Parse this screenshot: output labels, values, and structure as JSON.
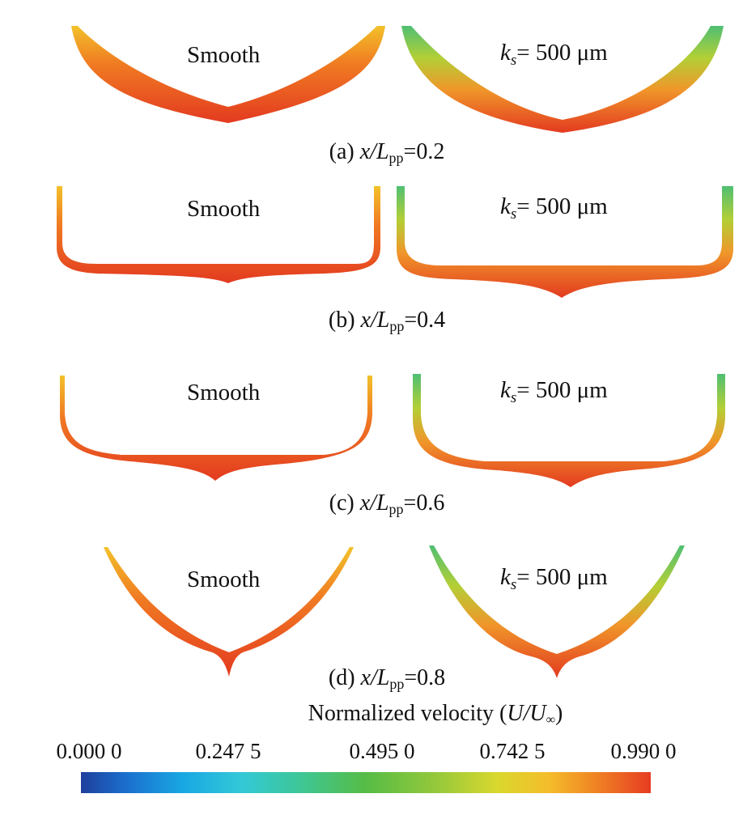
{
  "panels": [
    {
      "left_label": "Smooth",
      "right_label_prefix": "k",
      "right_label_sub": "s",
      "right_label_value": "= 500 μm",
      "caption_prefix": "(a) ",
      "caption_var": "x/L",
      "caption_sub": "pp",
      "caption_value": "=0.2"
    },
    {
      "left_label": "Smooth",
      "right_label_prefix": "k",
      "right_label_sub": "s",
      "right_label_value": "= 500 μm",
      "caption_prefix": "(b) ",
      "caption_var": "x/L",
      "caption_sub": "pp",
      "caption_value": "=0.4"
    },
    {
      "left_label": "Smooth",
      "right_label_prefix": "k",
      "right_label_sub": "s",
      "right_label_value": "= 500 μm",
      "caption_prefix": "(c) ",
      "caption_var": "x/L",
      "caption_sub": "pp",
      "caption_value": "=0.6"
    },
    {
      "left_label": "Smooth",
      "right_label_prefix": "k",
      "right_label_sub": "s",
      "right_label_value": "= 500 μm",
      "caption_prefix": "(d) ",
      "caption_var": "x/L",
      "caption_sub": "pp",
      "caption_value": "=0.8"
    }
  ],
  "colorbar": {
    "title_prefix": "Normalized velocity (",
    "title_var": "U/U",
    "title_sub": "∞",
    "title_suffix": ")",
    "ticks": [
      "0.000 0",
      "0.247 5",
      "0.495 0",
      "0.742 5",
      "0.990 0"
    ],
    "colors": [
      "#1f3f9c",
      "#19a8e3",
      "#56bc46",
      "#d9d82e",
      "#e63b22"
    ]
  }
}
